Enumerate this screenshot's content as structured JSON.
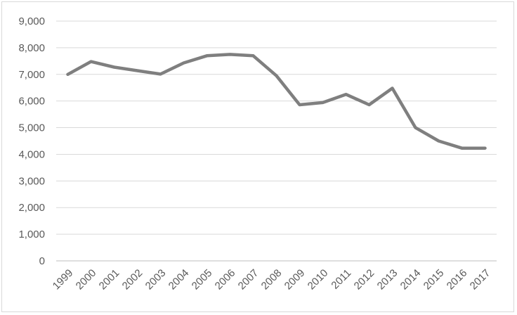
{
  "chart_data": {
    "type": "line",
    "title": "",
    "xlabel": "",
    "ylabel": "",
    "x": [
      "1999",
      "2000",
      "2001",
      "2002",
      "2003",
      "2004",
      "2005",
      "2006",
      "2007",
      "2008",
      "2009",
      "2010",
      "2011",
      "2012",
      "2013",
      "2014",
      "2015",
      "2016",
      "2017"
    ],
    "y_ticks": [
      "0",
      "1,000",
      "2,000",
      "3,000",
      "4,000",
      "5,000",
      "6,000",
      "7,000",
      "8,000",
      "9,000"
    ],
    "ylim": [
      0,
      9000
    ],
    "grid": true,
    "legend": "none",
    "series": [
      {
        "values": [
          7000,
          7480,
          7270,
          7140,
          7010,
          7430,
          7700,
          7750,
          7700,
          6950,
          5860,
          5940,
          6250,
          5860,
          6480,
          5000,
          4500,
          4230,
          4230
        ],
        "color": "#7f7f7f"
      }
    ],
    "colors": {
      "grid": "#d9d9d9",
      "axis": "#bfbfbf",
      "line": "#7f7f7f",
      "text": "#595959"
    }
  }
}
